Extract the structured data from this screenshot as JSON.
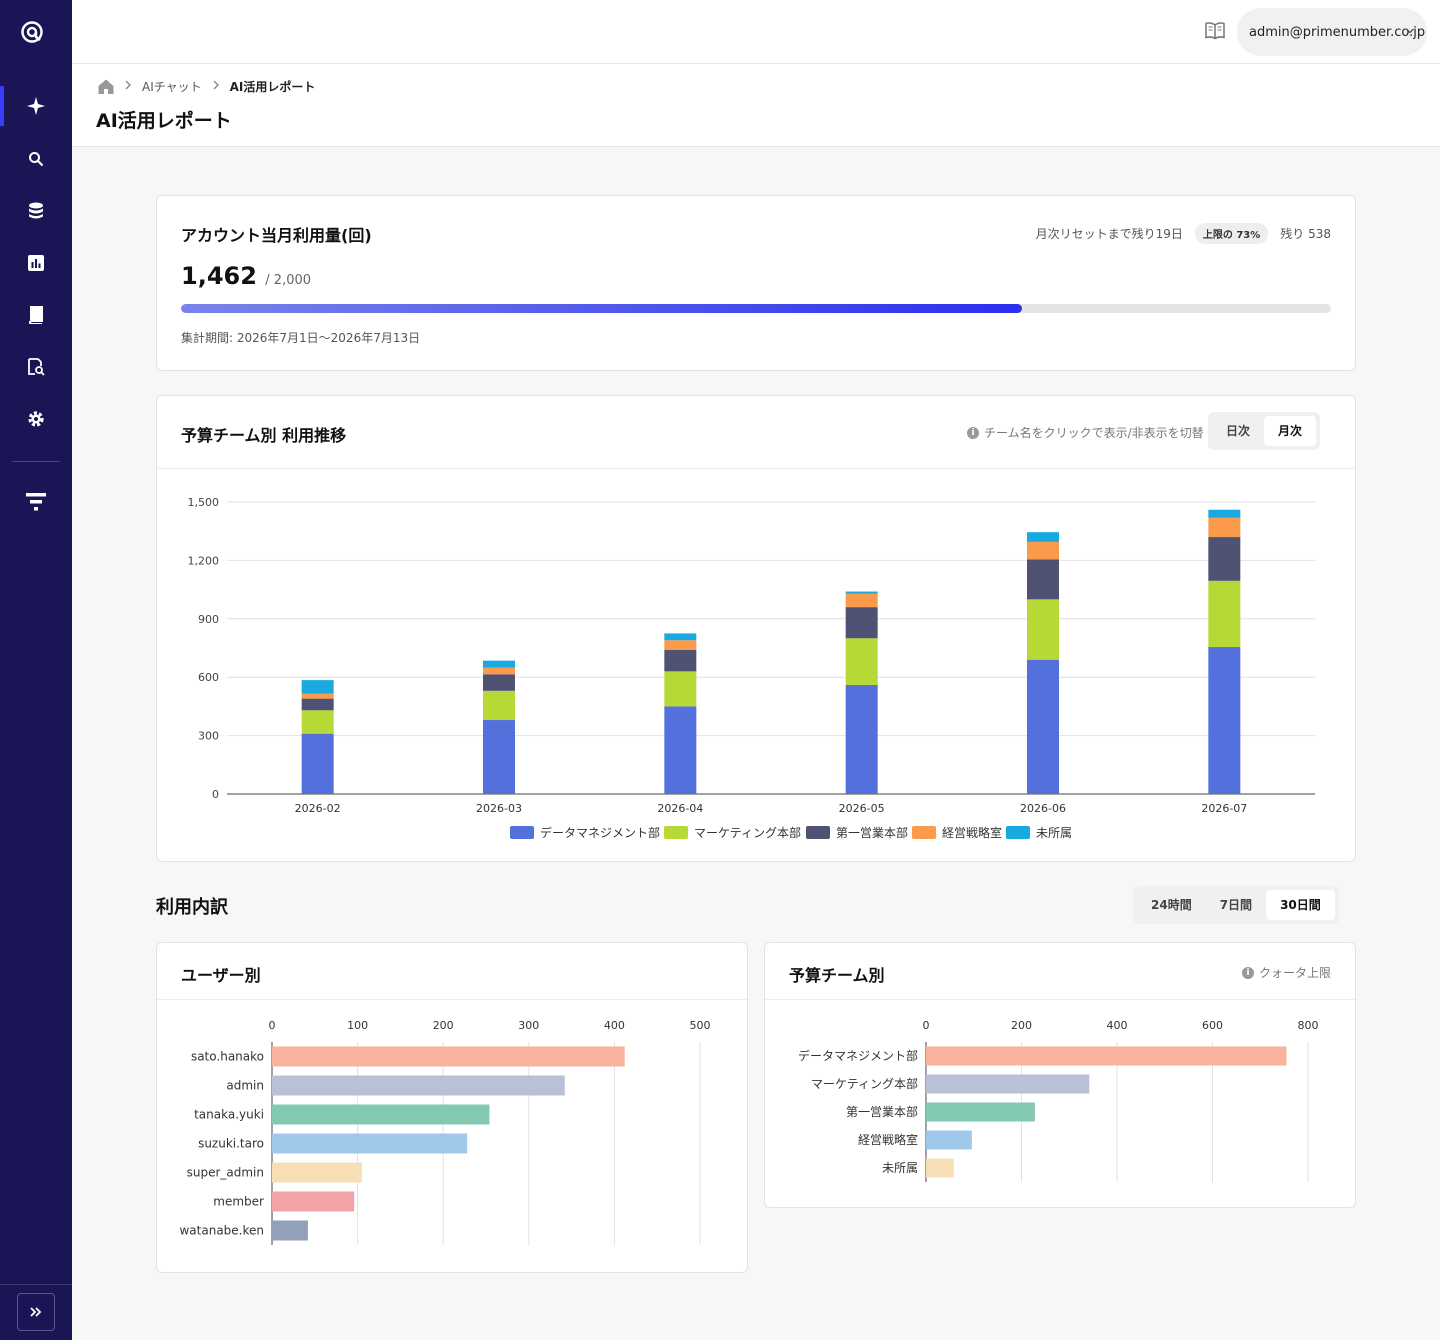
{
  "app": {
    "user_email": "admin@primenumber.co.jp"
  },
  "breadcrumb": [
    "AIチャット",
    "AI活用レポート"
  ],
  "page_title": "AI活用レポート",
  "usage": {
    "title": "アカウント当月利用量(回)",
    "reset_text": "月次リセットまで残り19日",
    "badge": "上限の 73%",
    "remaining": "残り 538",
    "used": "1,462",
    "limit": "/ 2,000",
    "progress": 0.731,
    "period": "集計期間: 2026年7月1日〜2026年7月13日"
  },
  "trend": {
    "title": "予算チーム別 利用推移",
    "hint": "チーム名をクリックで表示/非表示を切替",
    "toggle": [
      "日次",
      "月次"
    ],
    "toggle_selected": "月次"
  },
  "breakdown": {
    "title": "利用内訳",
    "ranges": [
      "24時間",
      "7日間",
      "30日間"
    ],
    "range_selected": "30日間",
    "by_user_title": "ユーザー別",
    "by_team_title": "予算チーム別",
    "quota_label": "クォータ上限"
  },
  "chart_data": [
    {
      "type": "bar",
      "stacked": true,
      "categories": [
        "2026-02",
        "2026-03",
        "2026-04",
        "2026-05",
        "2026-06",
        "2026-07"
      ],
      "ylim": [
        0,
        1500
      ],
      "yticks": [
        0,
        300,
        600,
        900,
        1200,
        1500
      ],
      "grid": true,
      "legend": "bottom",
      "series": [
        {
          "name": "データマネジメント部",
          "color": "#5470dc",
          "values": [
            310,
            380,
            450,
            560,
            690,
            755
          ]
        },
        {
          "name": "マーケティング本部",
          "color": "#b7d936",
          "values": [
            120,
            150,
            180,
            240,
            310,
            340
          ]
        },
        {
          "name": "第一営業本部",
          "color": "#4f5273",
          "values": [
            60,
            85,
            110,
            160,
            205,
            225
          ]
        },
        {
          "name": "経営戦略室",
          "color": "#fb9a4b",
          "values": [
            25,
            35,
            50,
            70,
            90,
            100
          ]
        },
        {
          "name": "未所属",
          "color": "#18a9e0",
          "values": [
            70,
            35,
            35,
            10,
            50,
            40
          ]
        }
      ]
    },
    {
      "type": "bar",
      "orientation": "horizontal",
      "categories": [
        "sato.hanako",
        "admin",
        "tanaka.yuki",
        "suzuki.taro",
        "super_admin",
        "member",
        "watanabe.ken"
      ],
      "values": [
        412,
        342,
        254,
        228,
        105,
        96,
        42
      ],
      "colors": [
        "#f9b39c",
        "#b8c1d6",
        "#83c8b3",
        "#9fc9ea",
        "#f6dfb6",
        "#f3a3a8",
        "#93a0ba"
      ],
      "xlim": [
        0,
        500
      ],
      "xticks": [
        0,
        100,
        200,
        300,
        400,
        500
      ]
    },
    {
      "type": "bar",
      "orientation": "horizontal",
      "categories": [
        "データマネジメント部",
        "マーケティング本部",
        "第一営業本部",
        "経営戦略室",
        "未所属"
      ],
      "values": [
        755,
        342,
        228,
        96,
        58
      ],
      "colors": [
        "#f9b39c",
        "#b8c1d6",
        "#83c8b3",
        "#9fc9ea",
        "#f6dfb6"
      ],
      "xlim": [
        0,
        800
      ],
      "xticks": [
        0,
        200,
        400,
        600,
        800
      ]
    }
  ]
}
